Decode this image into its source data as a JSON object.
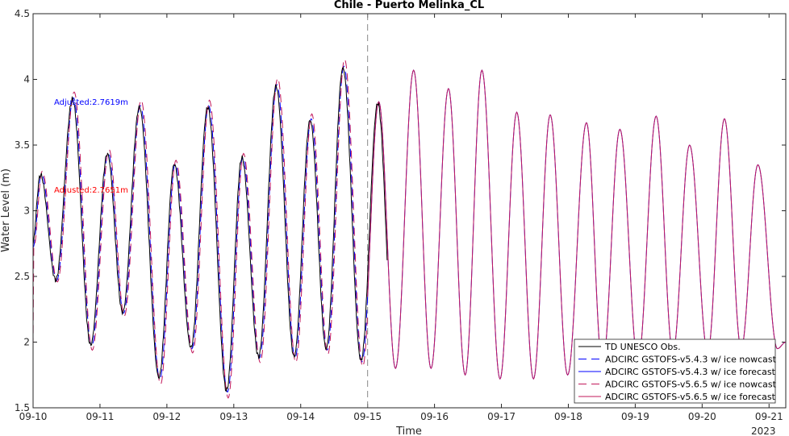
{
  "chart_data": {
    "type": "line",
    "title": "Chile - Puerto Melinka_CL",
    "xlabel": "Time",
    "ylabel": "Water Level (m)",
    "x_tick_labels": [
      "09-10",
      "09-11",
      "09-12",
      "09-13",
      "09-14",
      "09-15",
      "09-16",
      "09-17",
      "09-18",
      "09-19",
      "09-20",
      "09-21"
    ],
    "x_year_label": "2023",
    "x_range": [
      "2023-09-10 00:00",
      "2023-09-21 06:00"
    ],
    "ylim": [
      1.5,
      4.5
    ],
    "yticks": [
      1.5,
      2,
      2.5,
      3,
      3.5,
      4,
      4.5
    ],
    "ytick_labels": [
      "1.5",
      "2",
      "2.5",
      "3",
      "3.5",
      "4",
      "4.5"
    ],
    "grid": false,
    "legend_position": "bottom-right",
    "forecast_start": "2023-09-15 00:00",
    "annotations": [
      {
        "text": "Adjusted:2.7619m",
        "color": "#0000ff"
      },
      {
        "text": "Adjusted:2.7651m",
        "color": "#ff0000"
      }
    ],
    "extrema": [
      {
        "t": "2023-09-10 00:00",
        "v": 2.72
      },
      {
        "t": "2023-09-10 03:00",
        "v": 3.28
      },
      {
        "t": "2023-09-10 08:30",
        "v": 2.47
      },
      {
        "t": "2023-09-10 14:30",
        "v": 3.86
      },
      {
        "t": "2023-09-10 21:00",
        "v": 1.97
      },
      {
        "t": "2023-09-11 03:00",
        "v": 3.44
      },
      {
        "t": "2023-09-11 08:30",
        "v": 2.22
      },
      {
        "t": "2023-09-11 14:30",
        "v": 3.8
      },
      {
        "t": "2023-09-11 21:30",
        "v": 1.72
      },
      {
        "t": "2023-09-12 03:00",
        "v": 3.36
      },
      {
        "t": "2023-09-12 09:00",
        "v": 1.95
      },
      {
        "t": "2023-09-12 15:00",
        "v": 3.8
      },
      {
        "t": "2023-09-12 21:45",
        "v": 1.62
      },
      {
        "t": "2023-09-13 03:15",
        "v": 3.41
      },
      {
        "t": "2023-09-13 09:15",
        "v": 1.88
      },
      {
        "t": "2023-09-13 15:30",
        "v": 3.96
      },
      {
        "t": "2023-09-13 22:00",
        "v": 1.88
      },
      {
        "t": "2023-09-14 03:45",
        "v": 3.7
      },
      {
        "t": "2023-09-14 09:30",
        "v": 1.94
      },
      {
        "t": "2023-09-14 15:30",
        "v": 4.1
      },
      {
        "t": "2023-09-14 22:00",
        "v": 1.85
      },
      {
        "t": "2023-09-15 04:00",
        "v": 3.83
      },
      {
        "t": "2023-09-15 10:00",
        "v": 1.8
      },
      {
        "t": "2023-09-15 16:30",
        "v": 4.07
      },
      {
        "t": "2023-09-15 22:45",
        "v": 1.8
      },
      {
        "t": "2023-09-16 05:00",
        "v": 3.93
      },
      {
        "t": "2023-09-16 11:00",
        "v": 1.75
      },
      {
        "t": "2023-09-16 17:00",
        "v": 4.07
      },
      {
        "t": "2023-09-16 23:30",
        "v": 1.72
      },
      {
        "t": "2023-09-17 05:30",
        "v": 3.75
      },
      {
        "t": "2023-09-17 11:30",
        "v": 1.72
      },
      {
        "t": "2023-09-17 17:30",
        "v": 3.73
      },
      {
        "t": "2023-09-17 23:45",
        "v": 1.75
      },
      {
        "t": "2023-09-18 06:30",
        "v": 3.67
      },
      {
        "t": "2023-09-18 12:15",
        "v": 1.82
      },
      {
        "t": "2023-09-18 18:30",
        "v": 3.62
      },
      {
        "t": "2023-09-19 01:00",
        "v": 1.85
      },
      {
        "t": "2023-09-19 07:30",
        "v": 3.72
      },
      {
        "t": "2023-09-19 13:30",
        "v": 1.92
      },
      {
        "t": "2023-09-19 19:30",
        "v": 3.5
      },
      {
        "t": "2023-09-20 02:00",
        "v": 1.92
      },
      {
        "t": "2023-09-20 08:00",
        "v": 3.7
      },
      {
        "t": "2023-09-20 14:00",
        "v": 1.95
      },
      {
        "t": "2023-09-20 20:00",
        "v": 3.35
      },
      {
        "t": "2023-09-21 03:00",
        "v": 1.95
      },
      {
        "t": "2023-09-21 06:00",
        "v": 2.0
      }
    ],
    "obs_end": "2023-09-15 07:00",
    "series": [
      {
        "name": "TD UNESCO Obs.",
        "color": "#000000",
        "dash": "solid"
      },
      {
        "name": "ADCIRC GSTOFS-v5.4.3 w/ ice nowcast",
        "color": "#0000ff",
        "dash": "dashed"
      },
      {
        "name": "ADCIRC GSTOFS-v5.4.3 w/ ice forecast",
        "color": "#0000ff",
        "dash": "solid"
      },
      {
        "name": "ADCIRC GSTOFS-v5.6.5 w/ ice nowcast",
        "color": "#c2185b",
        "dash": "dashed"
      },
      {
        "name": "ADCIRC GSTOFS-v5.6.5 w/ ice forecast",
        "color": "#c2185b",
        "dash": "solid"
      }
    ]
  }
}
